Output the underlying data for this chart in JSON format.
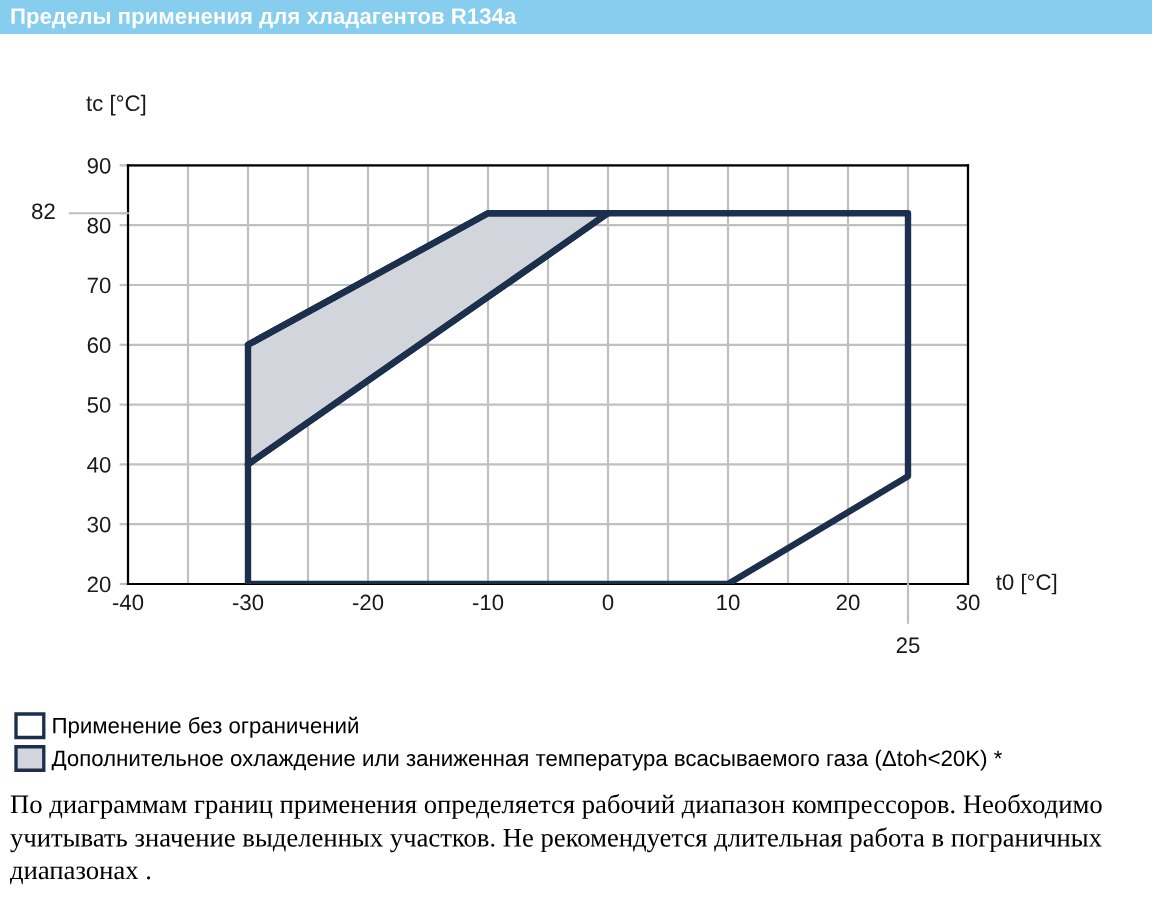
{
  "chart_data": {
    "type": "line",
    "title": "Пределы применения для хладагентов R134a",
    "xlabel": "t0 [°C]",
    "ylabel": "tc [°C]",
    "xlim": [
      -40,
      30
    ],
    "ylim": [
      20,
      90
    ],
    "xticks": [
      -40,
      {
        "value": -35,
        "label": null
      },
      -30,
      {
        "value": -25,
        "label": null
      },
      -20,
      {
        "value": -15,
        "label": null
      },
      -10,
      {
        "value": -5,
        "label": null
      },
      0,
      {
        "value": 5,
        "label": null
      },
      10,
      {
        "value": 15,
        "label": null
      },
      20,
      {
        "value": 25,
        "label": null
      },
      30
    ],
    "yticks": [
      20,
      30,
      40,
      50,
      60,
      70,
      80,
      {
        "value": 82,
        "label": null
      },
      90
    ],
    "grid": true,
    "legend": "bottom",
    "series": [
      {
        "name": "Применение без ограничений",
        "color": "#1c2f4d",
        "x": [
          -30,
          -30,
          10,
          25,
          25,
          -10,
          -30
        ],
        "values": [
          40,
          20,
          20,
          38,
          82,
          82,
          60
        ]
      },
      {
        "name": "Дополнительное охлаждение или заниженная температура всасываемого газа (Δtoh<20K) *",
        "color": "#1c2f4d",
        "x": [
          -30,
          -10,
          0
        ],
        "values": [
          40,
          68,
          82
        ],
        "lower": [
          40,
          68,
          82
        ],
        "upper": [
          60,
          82,
          82
        ]
      }
    ],
    "annotations": [
      "82",
      {
        "text": "25",
        "x": 25
      },
      "По диаграммам границ применения определяется рабочий диапазон компрессоров. Необходимо учитывать значение выделенных участков. Не рекомендуется длительная работа в пограничных диапазонах ."
    ]
  }
}
